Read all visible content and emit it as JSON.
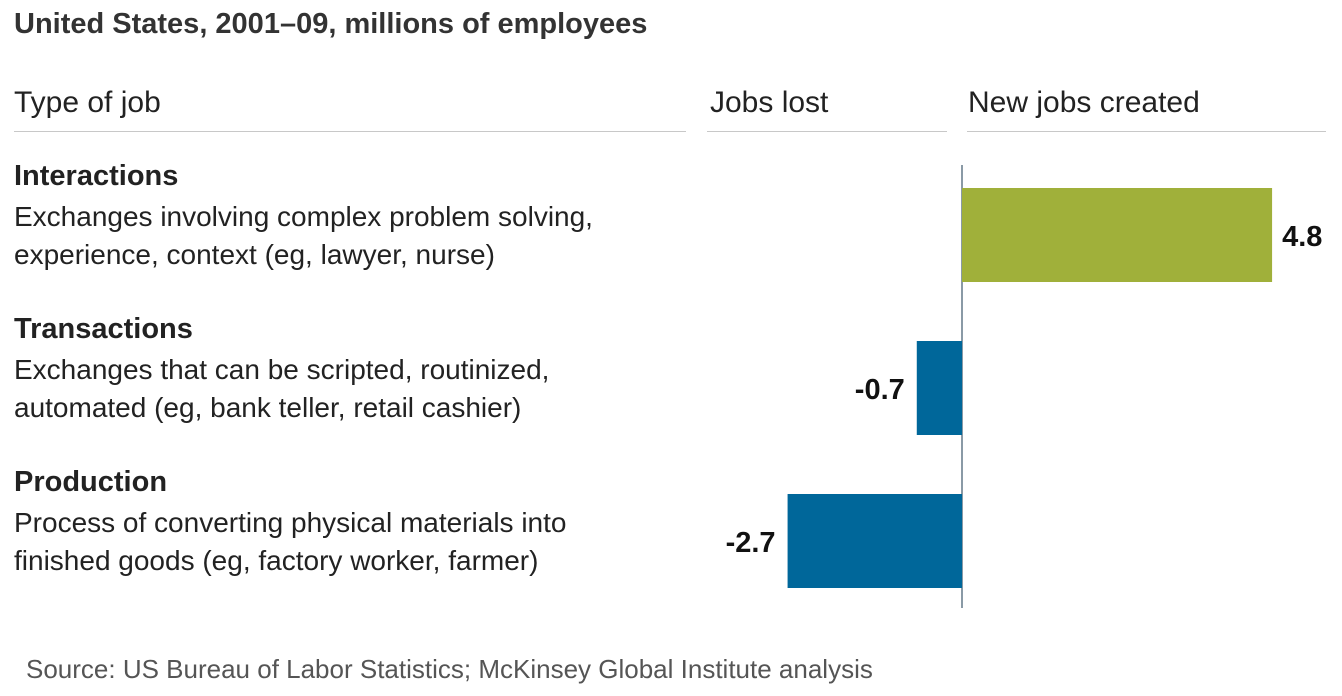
{
  "subtitle": "United States, 2001–09, millions of employees",
  "headers": {
    "type_of_job": "Type of job",
    "jobs_lost": "Jobs lost",
    "new_jobs": "New jobs created"
  },
  "rows": [
    {
      "title": "Interactions",
      "desc1": "Exchanges involving complex problem solving,",
      "desc2": "experience, context (eg, lawyer, nurse)"
    },
    {
      "title": "Transactions",
      "desc1": "Exchanges that can be scripted, routinized,",
      "desc2": "automated (eg, bank teller, retail cashier)"
    },
    {
      "title": "Production",
      "desc1": "Process of converting physical materials into",
      "desc2": "finished goods (eg, factory worker, farmer)"
    }
  ],
  "source": "Source: US Bureau of Labor Statistics; McKinsey Global Institute analysis",
  "colors": {
    "positive": "#a0b03a",
    "negative": "#00679a",
    "axis": "#8a9aa6"
  },
  "chart_data": {
    "type": "bar",
    "orientation": "horizontal",
    "categories": [
      "Interactions",
      "Transactions",
      "Production"
    ],
    "values": [
      4.8,
      -0.7,
      -2.7
    ],
    "value_labels": [
      "4.8",
      "-0.7",
      "-2.7"
    ]
  }
}
